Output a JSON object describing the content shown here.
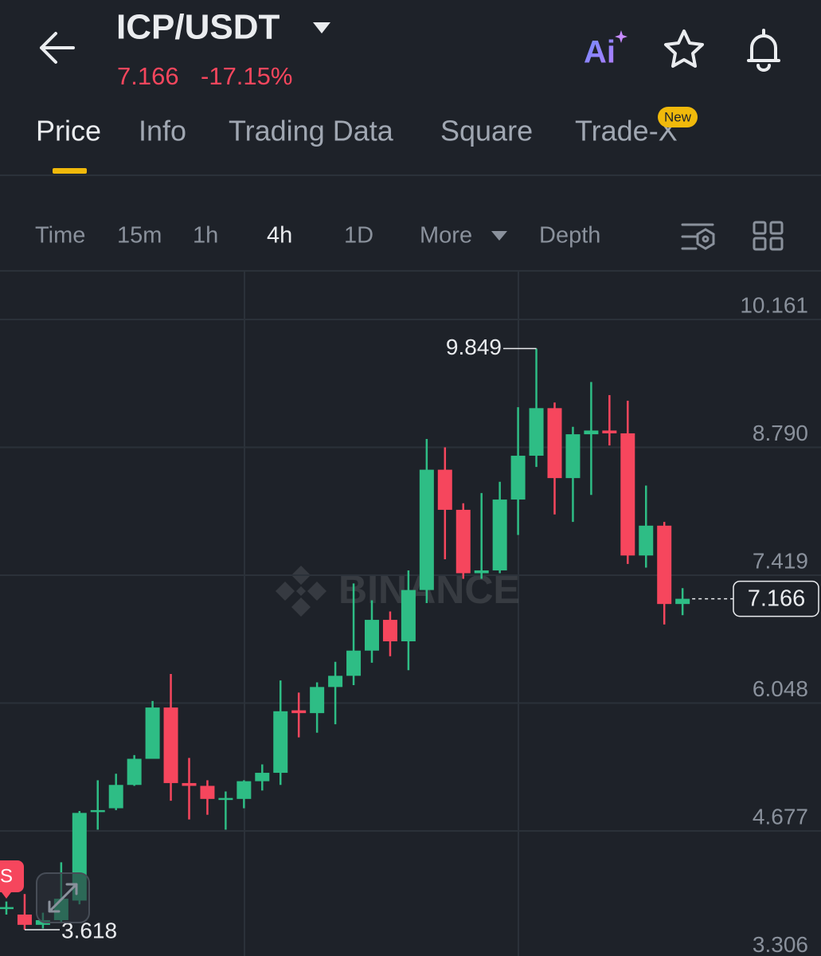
{
  "header": {
    "title": "ICP/USDT",
    "price": "7.166",
    "change": "-17.15%",
    "ai": "Ai"
  },
  "tabs": [
    "Price",
    "Info",
    "Trading Data",
    "Square",
    "Trade-X"
  ],
  "badge": "New",
  "intervals": [
    "Time",
    "15m",
    "1h",
    "4h",
    "1D",
    "More",
    "Depth"
  ],
  "chart_data": {
    "type": "candlestick",
    "watermark": "BINANCE",
    "marker": "S",
    "up_color": "#2ebd85",
    "down_color": "#f6465d",
    "grid": true,
    "ylim": [
      3.293,
      10.682
    ],
    "yticks": [
      10.161,
      {
        "value": 8.79,
        "label": "8.790"
      },
      7.419,
      6.048,
      4.677,
      3.306
    ],
    "high_label": 9.849,
    "low_label": 3.618,
    "last_price": 7.166,
    "candles": [
      {
        "o": 3.84,
        "h": 3.92,
        "l": 3.78,
        "c": 3.86
      },
      {
        "o": 3.78,
        "h": 4.0,
        "l": 3.618,
        "c": 3.67
      },
      {
        "o": 3.67,
        "h": 3.8,
        "l": 3.63,
        "c": 3.72
      },
      {
        "o": 3.72,
        "h": 4.34,
        "l": 3.7,
        "c": 3.95
      },
      {
        "o": 3.93,
        "h": 4.89,
        "l": 3.89,
        "c": 4.87
      },
      {
        "o": 4.88,
        "h": 5.22,
        "l": 4.69,
        "c": 4.9
      },
      {
        "o": 4.92,
        "h": 5.29,
        "l": 4.9,
        "c": 5.17
      },
      {
        "o": 5.17,
        "h": 5.49,
        "l": 5.16,
        "c": 5.45
      },
      {
        "o": 5.45,
        "h": 6.07,
        "l": 5.45,
        "c": 6.0
      },
      {
        "o": 6.0,
        "h": 6.36,
        "l": 5.0,
        "c": 5.19
      },
      {
        "o": 5.19,
        "h": 5.46,
        "l": 4.8,
        "c": 5.16
      },
      {
        "o": 5.16,
        "h": 5.22,
        "l": 4.85,
        "c": 5.02
      },
      {
        "o": 5.02,
        "h": 5.1,
        "l": 4.69,
        "c": 5.03
      },
      {
        "o": 5.02,
        "h": 5.22,
        "l": 4.92,
        "c": 5.21
      },
      {
        "o": 5.21,
        "h": 5.39,
        "l": 5.11,
        "c": 5.3
      },
      {
        "o": 5.3,
        "h": 6.29,
        "l": 5.17,
        "c": 5.96
      },
      {
        "o": 5.97,
        "h": 6.16,
        "l": 5.68,
        "c": 5.94
      },
      {
        "o": 5.94,
        "h": 6.27,
        "l": 5.73,
        "c": 6.22
      },
      {
        "o": 6.22,
        "h": 6.49,
        "l": 5.82,
        "c": 6.34
      },
      {
        "o": 6.34,
        "h": 7.33,
        "l": 6.24,
        "c": 6.61
      },
      {
        "o": 6.61,
        "h": 7.15,
        "l": 6.48,
        "c": 6.94
      },
      {
        "o": 6.94,
        "h": 7.03,
        "l": 6.55,
        "c": 6.71
      },
      {
        "o": 6.71,
        "h": 7.47,
        "l": 6.4,
        "c": 7.26
      },
      {
        "o": 7.26,
        "h": 8.88,
        "l": 7.12,
        "c": 8.55
      },
      {
        "o": 8.55,
        "h": 8.79,
        "l": 7.59,
        "c": 8.12
      },
      {
        "o": 8.12,
        "h": 8.19,
        "l": 7.38,
        "c": 7.44
      },
      {
        "o": 7.44,
        "h": 8.3,
        "l": 7.38,
        "c": 7.47
      },
      {
        "o": 7.47,
        "h": 8.42,
        "l": 7.44,
        "c": 8.23
      },
      {
        "o": 8.23,
        "h": 9.22,
        "l": 7.85,
        "c": 8.7
      },
      {
        "o": 8.7,
        "h": 9.849,
        "l": 8.58,
        "c": 9.21
      },
      {
        "o": 9.21,
        "h": 9.27,
        "l": 8.07,
        "c": 8.46
      },
      {
        "o": 8.46,
        "h": 9.01,
        "l": 7.99,
        "c": 8.93
      },
      {
        "o": 8.93,
        "h": 9.49,
        "l": 8.28,
        "c": 8.97
      },
      {
        "o": 8.97,
        "h": 9.35,
        "l": 8.81,
        "c": 8.94
      },
      {
        "o": 8.94,
        "h": 9.29,
        "l": 7.54,
        "c": 7.63
      },
      {
        "o": 7.63,
        "h": 8.38,
        "l": 7.5,
        "c": 7.95
      },
      {
        "o": 7.95,
        "h": 7.99,
        "l": 6.89,
        "c": 7.11
      },
      {
        "o": 7.11,
        "h": 7.28,
        "l": 6.99,
        "c": 7.166
      }
    ]
  }
}
